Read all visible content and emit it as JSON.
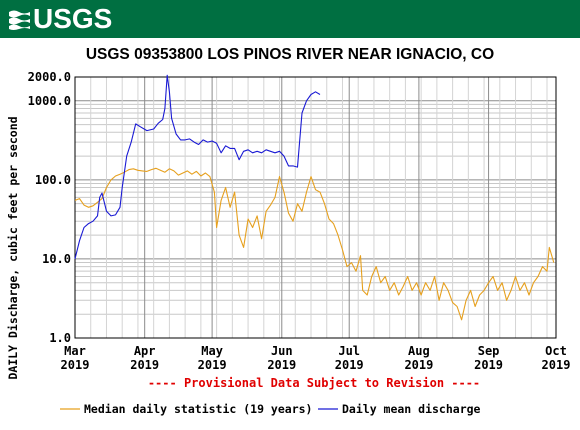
{
  "header": {
    "logo_text": "USGS",
    "logo_icon": "usgs-wave-icon"
  },
  "chart_data": {
    "type": "line",
    "title": "USGS 09353800 LOS PINOS RIVER NEAR IGNACIO, CO",
    "ylabel": "DAILY Discharge, cubic feet per second",
    "xlabel": "",
    "yscale": "log",
    "ylim": [
      1,
      2000
    ],
    "y_ticks": [
      1,
      10,
      100,
      1000,
      2000
    ],
    "y_tick_labels": [
      "1.0",
      "10.0",
      "100.0",
      "1000.0",
      "2000.0"
    ],
    "x_range": [
      "2019-03-01",
      "2019-10-01"
    ],
    "x_ticks": [
      {
        "date": "2019-03-01",
        "month": "Mar",
        "year": "2019"
      },
      {
        "date": "2019-04-01",
        "month": "Apr",
        "year": "2019"
      },
      {
        "date": "2019-05-01",
        "month": "May",
        "year": "2019"
      },
      {
        "date": "2019-06-01",
        "month": "Jun",
        "year": "2019"
      },
      {
        "date": "2019-07-01",
        "month": "Jul",
        "year": "2019"
      },
      {
        "date": "2019-08-01",
        "month": "Aug",
        "year": "2019"
      },
      {
        "date": "2019-09-01",
        "month": "Sep",
        "year": "2019"
      },
      {
        "date": "2019-10-01",
        "month": "Oct",
        "year": "2019"
      }
    ],
    "grid": true,
    "annotation": "---- Provisional Data Subject to Revision ----",
    "legend_position": "bottom",
    "series": [
      {
        "name": "Median daily statistic (19 years)",
        "color": "#e6a01e",
        "points": [
          [
            "2019-03-01",
            55
          ],
          [
            "2019-03-03",
            58
          ],
          [
            "2019-03-05",
            48
          ],
          [
            "2019-03-07",
            45
          ],
          [
            "2019-03-09",
            47
          ],
          [
            "2019-03-11",
            52
          ],
          [
            "2019-03-13",
            58
          ],
          [
            "2019-03-15",
            80
          ],
          [
            "2019-03-17",
            100
          ],
          [
            "2019-03-19",
            112
          ],
          [
            "2019-03-21",
            118
          ],
          [
            "2019-03-23",
            125
          ],
          [
            "2019-03-25",
            135
          ],
          [
            "2019-03-27",
            138
          ],
          [
            "2019-03-29",
            132
          ],
          [
            "2019-03-31",
            130
          ],
          [
            "2019-04-02",
            128
          ],
          [
            "2019-04-04",
            135
          ],
          [
            "2019-04-06",
            140
          ],
          [
            "2019-04-08",
            132
          ],
          [
            "2019-04-10",
            125
          ],
          [
            "2019-04-12",
            138
          ],
          [
            "2019-04-14",
            130
          ],
          [
            "2019-04-16",
            115
          ],
          [
            "2019-04-18",
            122
          ],
          [
            "2019-04-20",
            130
          ],
          [
            "2019-04-22",
            118
          ],
          [
            "2019-04-24",
            128
          ],
          [
            "2019-04-26",
            112
          ],
          [
            "2019-04-28",
            122
          ],
          [
            "2019-04-30",
            110
          ],
          [
            "2019-05-02",
            70
          ],
          [
            "2019-05-03",
            25
          ],
          [
            "2019-05-05",
            55
          ],
          [
            "2019-05-07",
            80
          ],
          [
            "2019-05-09",
            45
          ],
          [
            "2019-05-11",
            70
          ],
          [
            "2019-05-13",
            20
          ],
          [
            "2019-05-15",
            14
          ],
          [
            "2019-05-17",
            32
          ],
          [
            "2019-05-19",
            25
          ],
          [
            "2019-05-21",
            35
          ],
          [
            "2019-05-23",
            18
          ],
          [
            "2019-05-25",
            40
          ],
          [
            "2019-05-27",
            48
          ],
          [
            "2019-05-29",
            60
          ],
          [
            "2019-05-31",
            110
          ],
          [
            "2019-06-02",
            70
          ],
          [
            "2019-06-04",
            38
          ],
          [
            "2019-06-06",
            30
          ],
          [
            "2019-06-08",
            50
          ],
          [
            "2019-06-10",
            40
          ],
          [
            "2019-06-12",
            70
          ],
          [
            "2019-06-14",
            110
          ],
          [
            "2019-06-16",
            75
          ],
          [
            "2019-06-18",
            70
          ],
          [
            "2019-06-20",
            50
          ],
          [
            "2019-06-22",
            32
          ],
          [
            "2019-06-24",
            28
          ],
          [
            "2019-06-26",
            20
          ],
          [
            "2019-06-28",
            13
          ],
          [
            "2019-06-30",
            8
          ],
          [
            "2019-07-02",
            9
          ],
          [
            "2019-07-04",
            7
          ],
          [
            "2019-07-06",
            11
          ],
          [
            "2019-07-07",
            4
          ],
          [
            "2019-07-09",
            3.5
          ],
          [
            "2019-07-11",
            6
          ],
          [
            "2019-07-13",
            8
          ],
          [
            "2019-07-15",
            5
          ],
          [
            "2019-07-17",
            6
          ],
          [
            "2019-07-19",
            4
          ],
          [
            "2019-07-21",
            5
          ],
          [
            "2019-07-23",
            3.5
          ],
          [
            "2019-07-25",
            4.5
          ],
          [
            "2019-07-27",
            6
          ],
          [
            "2019-07-29",
            4
          ],
          [
            "2019-07-31",
            5
          ],
          [
            "2019-08-02",
            3.5
          ],
          [
            "2019-08-04",
            5
          ],
          [
            "2019-08-06",
            4
          ],
          [
            "2019-08-08",
            6
          ],
          [
            "2019-08-10",
            3
          ],
          [
            "2019-08-12",
            5
          ],
          [
            "2019-08-14",
            4
          ],
          [
            "2019-08-16",
            2.8
          ],
          [
            "2019-08-18",
            2.5
          ],
          [
            "2019-08-20",
            1.7
          ],
          [
            "2019-08-22",
            3
          ],
          [
            "2019-08-24",
            4
          ],
          [
            "2019-08-26",
            2.5
          ],
          [
            "2019-08-28",
            3.5
          ],
          [
            "2019-08-30",
            4
          ],
          [
            "2019-09-01",
            5
          ],
          [
            "2019-09-03",
            6
          ],
          [
            "2019-09-05",
            4
          ],
          [
            "2019-09-07",
            5
          ],
          [
            "2019-09-09",
            3
          ],
          [
            "2019-09-11",
            4
          ],
          [
            "2019-09-13",
            6
          ],
          [
            "2019-09-15",
            4
          ],
          [
            "2019-09-17",
            5
          ],
          [
            "2019-09-19",
            3.5
          ],
          [
            "2019-09-21",
            5
          ],
          [
            "2019-09-23",
            6
          ],
          [
            "2019-09-25",
            8
          ],
          [
            "2019-09-27",
            7
          ],
          [
            "2019-09-28",
            14
          ],
          [
            "2019-09-30",
            9
          ]
        ]
      },
      {
        "name": "Daily mean discharge",
        "color": "#1a1ad4",
        "points": [
          [
            "2019-03-01",
            10
          ],
          [
            "2019-03-03",
            17
          ],
          [
            "2019-03-05",
            25
          ],
          [
            "2019-03-07",
            28
          ],
          [
            "2019-03-09",
            30
          ],
          [
            "2019-03-11",
            35
          ],
          [
            "2019-03-12",
            60
          ],
          [
            "2019-03-13",
            68
          ],
          [
            "2019-03-15",
            40
          ],
          [
            "2019-03-17",
            35
          ],
          [
            "2019-03-19",
            36
          ],
          [
            "2019-03-21",
            45
          ],
          [
            "2019-03-22",
            80
          ],
          [
            "2019-03-24",
            200
          ],
          [
            "2019-03-26",
            300
          ],
          [
            "2019-03-28",
            510
          ],
          [
            "2019-03-30",
            470
          ],
          [
            "2019-04-02",
            420
          ],
          [
            "2019-04-05",
            440
          ],
          [
            "2019-04-07",
            520
          ],
          [
            "2019-04-09",
            580
          ],
          [
            "2019-04-10",
            800
          ],
          [
            "2019-04-11",
            2100
          ],
          [
            "2019-04-12",
            1300
          ],
          [
            "2019-04-13",
            600
          ],
          [
            "2019-04-15",
            380
          ],
          [
            "2019-04-17",
            320
          ],
          [
            "2019-04-19",
            320
          ],
          [
            "2019-04-21",
            330
          ],
          [
            "2019-04-23",
            300
          ],
          [
            "2019-04-25",
            280
          ],
          [
            "2019-04-27",
            320
          ],
          [
            "2019-04-29",
            300
          ],
          [
            "2019-05-01",
            310
          ],
          [
            "2019-05-03",
            290
          ],
          [
            "2019-05-05",
            220
          ],
          [
            "2019-05-07",
            270
          ],
          [
            "2019-05-09",
            250
          ],
          [
            "2019-05-11",
            250
          ],
          [
            "2019-05-13",
            180
          ],
          [
            "2019-05-15",
            230
          ],
          [
            "2019-05-17",
            240
          ],
          [
            "2019-05-19",
            220
          ],
          [
            "2019-05-21",
            230
          ],
          [
            "2019-05-23",
            220
          ],
          [
            "2019-05-25",
            240
          ],
          [
            "2019-05-27",
            230
          ],
          [
            "2019-05-29",
            220
          ],
          [
            "2019-05-31",
            230
          ],
          [
            "2019-06-02",
            200
          ],
          [
            "2019-06-04",
            150
          ],
          [
            "2019-06-06",
            150
          ],
          [
            "2019-06-08",
            145
          ],
          [
            "2019-06-10",
            700
          ],
          [
            "2019-06-12",
            1000
          ],
          [
            "2019-06-14",
            1200
          ],
          [
            "2019-06-16",
            1300
          ],
          [
            "2019-06-18",
            1200
          ]
        ]
      }
    ]
  }
}
